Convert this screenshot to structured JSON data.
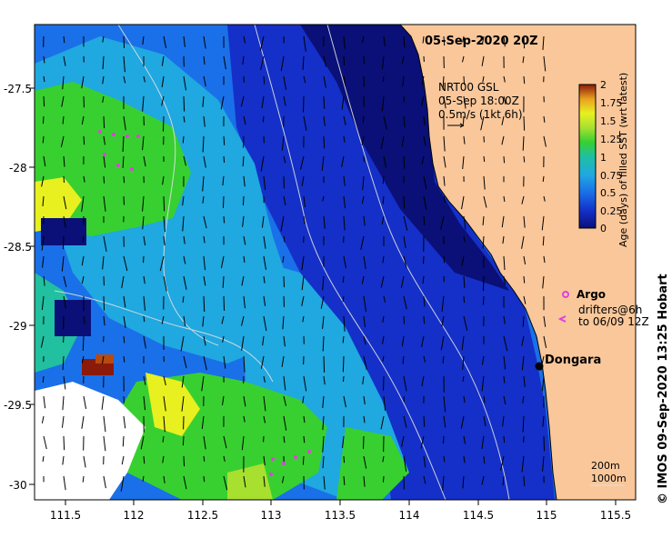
{
  "title": "05-Sep-2020 20Z",
  "info": {
    "line1": "NRT00 GSL",
    "line2": "05-Sep 18:00Z",
    "line3": "0.5m/s (1kt 6h)"
  },
  "colorbar": {
    "label": "Age (days) of filled SST (wrt latest)",
    "ticks": [
      "2",
      "1.75",
      "1.5",
      "1.25",
      "1",
      "0.75",
      "0.5",
      "0.25",
      "0"
    ],
    "colors": [
      "#8b1a0a",
      "#b84a10",
      "#e8a020",
      "#e8f020",
      "#a8e030",
      "#38d030",
      "#20c0a0",
      "#20a8e0",
      "#1a70e8",
      "#1430c8",
      "#0a1078"
    ]
  },
  "legend": {
    "argo": "Argo",
    "drifters_line1": "drifters@6h",
    "drifters_line2": "to 06/09 12Z"
  },
  "place": "Dongara",
  "contours": {
    "depth1": "200m",
    "depth2": "1000m"
  },
  "credit": "© IMOS 09-Sep-2020 13:25 Hobart",
  "x_ticks": [
    "111.5",
    "112",
    "112.5",
    "113",
    "113.5",
    "114",
    "114.5",
    "115",
    "115.5"
  ],
  "y_ticks": [
    "-27.5",
    "-28",
    "-28.5",
    "-29",
    "-29.5",
    "-30"
  ],
  "colors": {
    "land": "#f9c79a",
    "coast": "#000000",
    "contour": "#e0e0e0"
  }
}
